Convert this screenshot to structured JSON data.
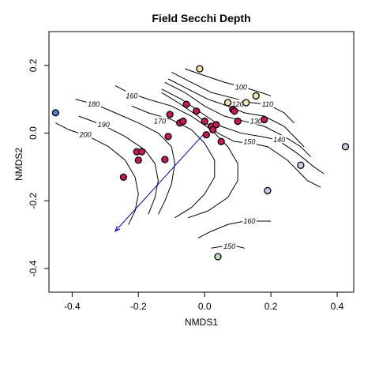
{
  "chart_data": {
    "type": "scatter",
    "title": "Field Secchi Depth",
    "xlabel": "NMDS1",
    "ylabel": "NMDS2",
    "xlim": [
      -0.47,
      0.45
    ],
    "ylim": [
      -0.47,
      0.3
    ],
    "xticks": [
      "-0.4",
      "-0.2",
      "0.0",
      "0.2",
      "0.4"
    ],
    "xtick_values": [
      -0.4,
      -0.2,
      0.0,
      0.2,
      0.4
    ],
    "yticks": [
      "-0.4",
      "-0.2",
      "0.0",
      "0.2"
    ],
    "ytick_values": [
      -0.4,
      -0.2,
      0.0,
      0.2
    ],
    "grid": false,
    "points": [
      {
        "x": -0.45,
        "y": 0.06,
        "color": "#4f7fbf"
      },
      {
        "x": -0.245,
        "y": -0.13,
        "color": "#c8185a"
      },
      {
        "x": -0.205,
        "y": -0.055,
        "color": "#c8185a"
      },
      {
        "x": -0.19,
        "y": -0.055,
        "color": "#c8185a"
      },
      {
        "x": -0.2,
        "y": -0.08,
        "color": "#c8185a"
      },
      {
        "x": -0.12,
        "y": -0.078,
        "color": "#c8185a"
      },
      {
        "x": -0.11,
        "y": -0.01,
        "color": "#c8185a"
      },
      {
        "x": -0.105,
        "y": 0.055,
        "color": "#c8185a"
      },
      {
        "x": -0.075,
        "y": 0.03,
        "color": "#c8185a"
      },
      {
        "x": -0.065,
        "y": 0.035,
        "color": "#c8185a"
      },
      {
        "x": -0.055,
        "y": 0.085,
        "color": "#c8185a"
      },
      {
        "x": -0.025,
        "y": 0.065,
        "color": "#c8185a"
      },
      {
        "x": 0.0,
        "y": 0.035,
        "color": "#c8185a"
      },
      {
        "x": 0.005,
        "y": -0.005,
        "color": "#c8185a"
      },
      {
        "x": 0.02,
        "y": 0.02,
        "color": "#c8185a"
      },
      {
        "x": 0.025,
        "y": 0.01,
        "color": "#c8185a"
      },
      {
        "x": 0.035,
        "y": 0.025,
        "color": "#c8185a"
      },
      {
        "x": 0.05,
        "y": -0.025,
        "color": "#c8185a"
      },
      {
        "x": 0.085,
        "y": 0.07,
        "color": "#c8185a"
      },
      {
        "x": 0.09,
        "y": 0.065,
        "color": "#c8185a"
      },
      {
        "x": 0.1,
        "y": 0.035,
        "color": "#c8185a"
      },
      {
        "x": 0.18,
        "y": 0.04,
        "color": "#c8185a"
      },
      {
        "x": -0.015,
        "y": 0.19,
        "color": "#f2e6a8"
      },
      {
        "x": 0.07,
        "y": 0.09,
        "color": "#f2e6a8"
      },
      {
        "x": 0.125,
        "y": 0.09,
        "color": "#f2e6a8"
      },
      {
        "x": 0.155,
        "y": 0.11,
        "color": "#f2e6a8"
      },
      {
        "x": 0.19,
        "y": -0.17,
        "color": "#c8cce8"
      },
      {
        "x": 0.29,
        "y": -0.095,
        "color": "#c8cce8"
      },
      {
        "x": 0.425,
        "y": -0.04,
        "color": "#c8cce8"
      },
      {
        "x": 0.04,
        "y": -0.365,
        "color": "#b8e0b8"
      }
    ],
    "vector": {
      "x": -0.27,
      "y": -0.29,
      "color": "#0000cc"
    },
    "contours": [
      {
        "level": "100",
        "label_at": [
          0.11,
          0.135
        ],
        "points": [
          [
            -0.06,
            0.19
          ],
          [
            0.0,
            0.17
          ],
          [
            0.06,
            0.15
          ],
          [
            0.12,
            0.135
          ],
          [
            0.17,
            0.12
          ],
          [
            0.2,
            0.11
          ]
        ]
      },
      {
        "level": "110",
        "label_at": [
          0.19,
          0.085
        ],
        "points": [
          [
            -0.1,
            0.18
          ],
          [
            -0.04,
            0.15
          ],
          [
            0.02,
            0.12
          ],
          [
            0.08,
            0.105
          ],
          [
            0.14,
            0.09
          ],
          [
            0.19,
            0.085
          ],
          [
            0.24,
            0.06
          ],
          [
            0.27,
            0.03
          ]
        ]
      },
      {
        "level": "120",
        "label_at": [
          0.1,
          0.085
        ],
        "points": [
          [
            -0.11,
            0.16
          ],
          [
            -0.05,
            0.13
          ],
          [
            0.01,
            0.1
          ],
          [
            0.07,
            0.08
          ],
          [
            0.12,
            0.06
          ],
          [
            0.18,
            0.05
          ],
          [
            0.24,
            0.02
          ],
          [
            0.28,
            -0.02
          ],
          [
            0.3,
            -0.04
          ]
        ]
      },
      {
        "level": "130",
        "label_at": [
          0.155,
          0.035
        ],
        "points": [
          [
            -0.12,
            0.15
          ],
          [
            -0.06,
            0.12
          ],
          [
            0.0,
            0.08
          ],
          [
            0.06,
            0.05
          ],
          [
            0.12,
            0.035
          ],
          [
            0.18,
            0.02
          ],
          [
            0.24,
            -0.01
          ],
          [
            0.29,
            -0.04
          ],
          [
            0.32,
            -0.07
          ]
        ]
      },
      {
        "level": "140",
        "label_at": [
          0.225,
          -0.02
        ],
        "points": [
          [
            -0.13,
            0.13
          ],
          [
            -0.07,
            0.1
          ],
          [
            -0.01,
            0.06
          ],
          [
            0.05,
            0.02
          ],
          [
            0.11,
            0.0
          ],
          [
            0.17,
            -0.01
          ],
          [
            0.22,
            -0.02
          ],
          [
            0.28,
            -0.06
          ],
          [
            0.33,
            -0.1
          ],
          [
            0.36,
            -0.12
          ]
        ]
      },
      {
        "level": "150",
        "label_at": [
          0.135,
          -0.025
        ],
        "points": [
          [
            -0.13,
            0.12
          ],
          [
            -0.08,
            0.09
          ],
          [
            -0.02,
            0.05
          ],
          [
            0.04,
            0.0
          ],
          [
            0.09,
            -0.025
          ],
          [
            0.14,
            -0.03
          ],
          [
            0.19,
            -0.04
          ],
          [
            0.25,
            -0.08
          ],
          [
            0.31,
            -0.14
          ],
          [
            0.35,
            -0.16
          ]
        ]
      },
      {
        "level": "160",
        "label_at": [
          -0.22,
          0.11
        ],
        "points": [
          [
            -0.27,
            0.14
          ],
          [
            -0.23,
            0.12
          ],
          [
            -0.17,
            0.1
          ],
          [
            -0.1,
            0.08
          ],
          [
            -0.04,
            0.05
          ],
          [
            0.02,
            0.01
          ],
          [
            0.07,
            -0.04
          ],
          [
            0.1,
            -0.09
          ],
          [
            0.1,
            -0.14
          ],
          [
            0.07,
            -0.19
          ],
          [
            0.01,
            -0.23
          ],
          [
            -0.05,
            -0.25
          ]
        ]
      },
      {
        "level": "170",
        "label_at": [
          -0.135,
          0.035
        ],
        "points": [
          [
            -0.22,
            0.08
          ],
          [
            -0.17,
            0.06
          ],
          [
            -0.1,
            0.04
          ],
          [
            -0.04,
            0.01
          ],
          [
            0.0,
            -0.03
          ],
          [
            0.03,
            -0.08
          ],
          [
            0.03,
            -0.13
          ],
          [
            0.0,
            -0.18
          ],
          [
            -0.04,
            -0.22
          ],
          [
            -0.09,
            -0.25
          ]
        ]
      },
      {
        "level": "180",
        "label_at": [
          -0.335,
          0.085
        ],
        "points": [
          [
            -0.39,
            0.1
          ],
          [
            -0.33,
            0.085
          ],
          [
            -0.27,
            0.06
          ],
          [
            -0.2,
            0.03
          ],
          [
            -0.14,
            0.0
          ],
          [
            -0.1,
            -0.04
          ],
          [
            -0.09,
            -0.09
          ],
          [
            -0.1,
            -0.15
          ],
          [
            -0.12,
            -0.2
          ],
          [
            -0.14,
            -0.24
          ]
        ]
      },
      {
        "level": "190",
        "label_at": [
          -0.305,
          0.025
        ],
        "points": [
          [
            -0.38,
            0.05
          ],
          [
            -0.31,
            0.025
          ],
          [
            -0.24,
            -0.01
          ],
          [
            -0.18,
            -0.05
          ],
          [
            -0.15,
            -0.09
          ],
          [
            -0.14,
            -0.14
          ],
          [
            -0.15,
            -0.19
          ],
          [
            -0.17,
            -0.24
          ]
        ]
      },
      {
        "level": "200",
        "label_at": [
          -0.36,
          -0.005
        ],
        "points": [
          [
            -0.45,
            0.03
          ],
          [
            -0.41,
            0.01
          ],
          [
            -0.35,
            -0.01
          ],
          [
            -0.29,
            -0.04
          ],
          [
            -0.24,
            -0.08
          ],
          [
            -0.21,
            -0.13
          ],
          [
            -0.2,
            -0.18
          ],
          [
            -0.21,
            -0.23
          ],
          [
            -0.23,
            -0.27
          ]
        ]
      },
      {
        "level": "160",
        "label_at": [
          0.135,
          -0.26
        ],
        "points": [
          [
            -0.02,
            -0.31
          ],
          [
            0.02,
            -0.29
          ],
          [
            0.07,
            -0.27
          ],
          [
            0.12,
            -0.26
          ],
          [
            0.16,
            -0.26
          ],
          [
            0.2,
            -0.26
          ]
        ]
      },
      {
        "level": "150",
        "label_at": [
          0.075,
          -0.335
        ],
        "points": [
          [
            0.02,
            -0.34
          ],
          [
            0.05,
            -0.335
          ],
          [
            0.1,
            -0.335
          ],
          [
            0.12,
            -0.34
          ]
        ]
      }
    ]
  }
}
